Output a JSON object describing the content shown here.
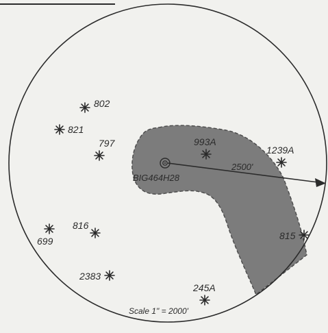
{
  "map": {
    "colors": {
      "background": "#f1f1ee",
      "boundary": "#2b2b2b",
      "shaded_area": "#7c7c7c",
      "shaded_edge": "#4a4a4a",
      "text": "#2b2b2b"
    },
    "center_well": {
      "label": "BIG464H28",
      "icon": "bullseye-well-icon"
    },
    "radius_label": "2500'",
    "scale_label": "Scale 1\" = 2000'",
    "wells": [
      {
        "id": "802",
        "label": "802",
        "icon": "star-well-icon"
      },
      {
        "id": "821",
        "label": "821",
        "icon": "star-well-icon"
      },
      {
        "id": "797",
        "label": "797",
        "icon": "star-well-icon"
      },
      {
        "id": "993A",
        "label": "993A",
        "icon": "star-well-icon"
      },
      {
        "id": "1239A",
        "label": "1239A",
        "icon": "star-well-icon"
      },
      {
        "id": "699",
        "label": "699",
        "icon": "star-well-icon"
      },
      {
        "id": "816",
        "label": "816",
        "icon": "star-well-icon"
      },
      {
        "id": "815",
        "label": "815",
        "icon": "star-well-icon"
      },
      {
        "id": "2383",
        "label": "2383",
        "icon": "star-well-icon"
      },
      {
        "id": "245A",
        "label": "245A",
        "icon": "star-well-icon"
      }
    ]
  }
}
